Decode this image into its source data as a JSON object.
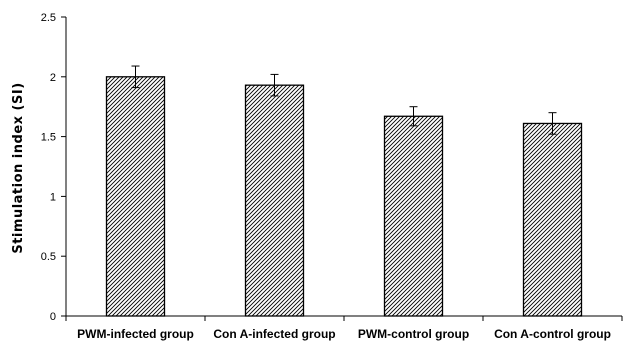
{
  "chart_data": {
    "type": "bar",
    "categories": [
      "PWM-infected group",
      "Con A-infected group",
      "PWM-control group",
      "Con A-control group"
    ],
    "values": [
      2.0,
      1.93,
      1.67,
      1.61
    ],
    "error": [
      0.09,
      0.09,
      0.08,
      0.09
    ],
    "ylabel": "Stimulation index (SI)",
    "xlabel": "",
    "ylim": [
      0,
      2.5
    ],
    "yticks": [
      0,
      0.5,
      1,
      1.5,
      2,
      2.5
    ],
    "ytick_labels": [
      "0",
      "0.5",
      "1",
      "1.5",
      "2",
      "2.5"
    ],
    "grid": false,
    "legend": "none",
    "bar_fill": "hatched",
    "colors": {
      "bar_stroke": "#000000",
      "hatch": "#000000",
      "background": "#ffffff"
    }
  }
}
